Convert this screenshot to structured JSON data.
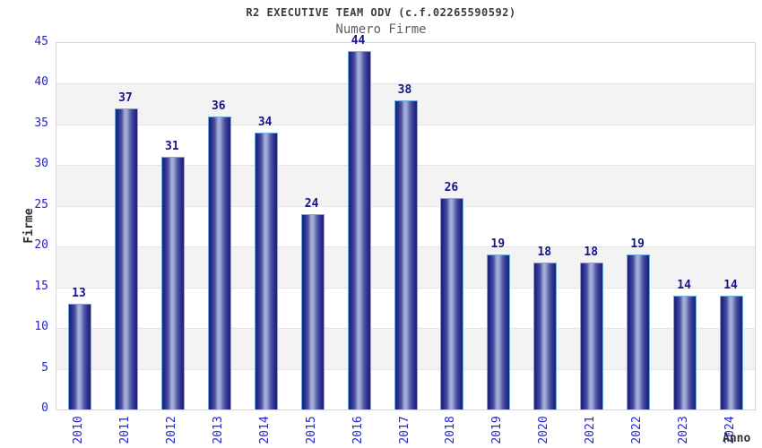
{
  "chart_data": {
    "type": "bar",
    "title": "R2 EXECUTIVE TEAM ODV (c.f.02265590592)",
    "subtitle": "Numero Firme",
    "xlabel": "Anno",
    "ylabel": "Firme",
    "categories": [
      "2010",
      "2011",
      "2012",
      "2013",
      "2014",
      "2015",
      "2016",
      "2017",
      "2018",
      "2019",
      "2020",
      "2021",
      "2022",
      "2023",
      "2024"
    ],
    "values": [
      13,
      37,
      31,
      36,
      34,
      24,
      44,
      38,
      26,
      19,
      18,
      18,
      19,
      14,
      14
    ],
    "ylim": [
      0,
      45
    ],
    "ytick_step": 5,
    "yticks": [
      0,
      5,
      10,
      15,
      20,
      25,
      30,
      35,
      40,
      45
    ],
    "grid": "alternating-horizontal-bands",
    "legend_position": "none",
    "value_labels_shown": true,
    "colors": {
      "bar_edge_dark": "#1f2278",
      "bar_center_light": "#a8b0dc",
      "bar_border": "#72aee0",
      "axis_tick_label": "#2525cc",
      "value_label": "#15158a",
      "band_gray": "#f3f3f3",
      "band_white": "#ffffff",
      "gridline": "#e4e4e4",
      "plot_border": "#d6d6d6",
      "title": "#3c3c3c",
      "subtitle": "#5f5f5f",
      "axis_title": "#303030"
    }
  }
}
